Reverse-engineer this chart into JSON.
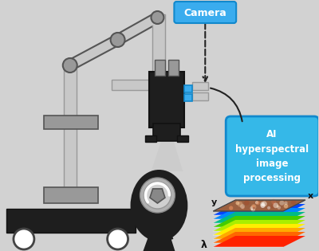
{
  "bg_color": "#d2d2d2",
  "camera_label": "Camera",
  "ai_text": "AI\nhyperspectral\nimage\nprocessing",
  "lambda_label": "λ",
  "x_label": "x",
  "y_label": "y",
  "gray_light": "#c8c8c8",
  "gray_mid": "#999999",
  "gray_dark": "#555555",
  "near_black": "#1e1e1e",
  "arm_outline": "#444444",
  "blue_cam": "#3aacee",
  "blue_ai": "#35b8e8",
  "cube_colors": [
    "#ff2200",
    "#ff6600",
    "#ffaa00",
    "#ffee00",
    "#aaee00",
    "#44cc00",
    "#00bb88",
    "#0088ff",
    "#0044ff",
    "#6600cc"
  ],
  "cube_top_color": "#9b6040",
  "white": "#ffffff"
}
